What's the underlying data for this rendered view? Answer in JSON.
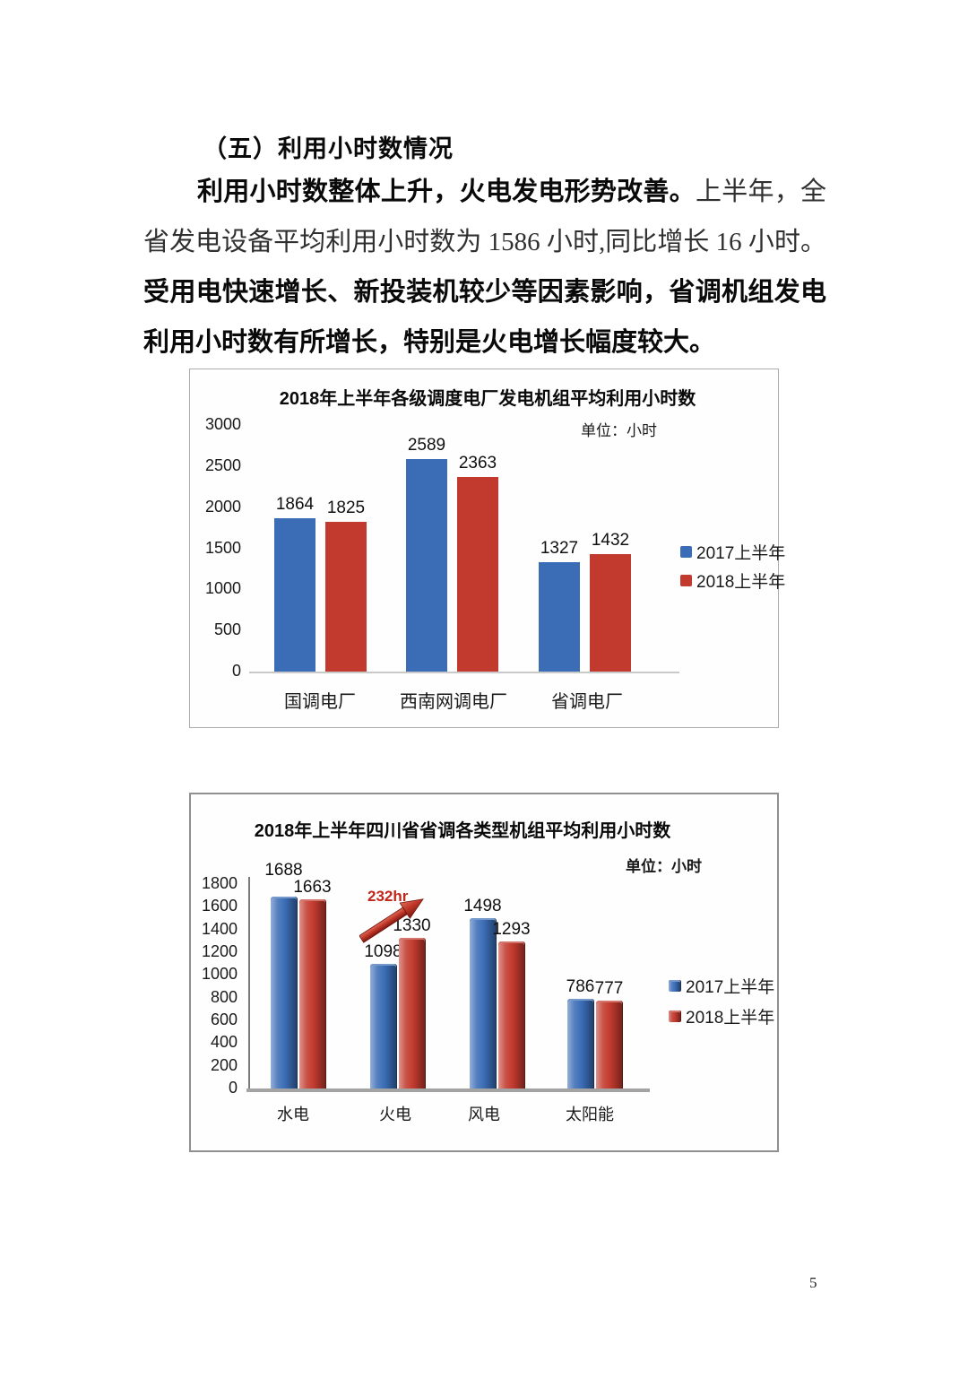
{
  "page_number": "5",
  "section": {
    "heading": "（五）利用小时数情况",
    "paragraph": {
      "bold_lead": "利用小时数整体上升，火电发电形势改善。",
      "regular": "上半年，全省发电设备平均利用小时数为 1586 小时,同比增长 16 小时。",
      "bold_tail": "受用电快速增长、新投装机较少等因素影响，省调机组发电利用小时数有所增长，特别是火电增长幅度较大。"
    }
  },
  "colors": {
    "series_2017_blue": "#3b6db6",
    "series_2018_red": "#c23a2e",
    "annotation_red": "#c2251a",
    "axis_gray": "#a3a3a3"
  },
  "chart_data": [
    {
      "type": "bar",
      "title": "2018年上半年各级调度电厂发电机组平均利用小时数",
      "unit_label": "单位：小时",
      "categories": [
        "国调电厂",
        "西南网调电厂",
        "省调电厂"
      ],
      "series": [
        {
          "name": "2017上半年",
          "color": "#3b6db6",
          "values": [
            1864,
            2589,
            1327
          ]
        },
        {
          "name": "2018上半年",
          "color": "#c23a2e",
          "values": [
            1825,
            2363,
            1432
          ]
        }
      ],
      "ylim": [
        0,
        3000
      ],
      "yticks": [
        0,
        500,
        1000,
        1500,
        2000,
        2500,
        3000
      ],
      "legend_position": "right",
      "grid": false
    },
    {
      "type": "bar",
      "title": "2018年上半年四川省省调各类型机组平均利用小时数",
      "unit_label": "单位：小时",
      "categories": [
        "水电",
        "火电",
        "风电",
        "太阳能"
      ],
      "series": [
        {
          "name": "2017上半年",
          "color": "#3b6db6",
          "values": [
            1688,
            1098,
            1498,
            786
          ]
        },
        {
          "name": "2018上半年",
          "color": "#c23a2e",
          "values": [
            1663,
            1330,
            1293,
            777
          ]
        }
      ],
      "ylim": [
        0,
        1800
      ],
      "yticks": [
        0,
        200,
        400,
        600,
        800,
        1000,
        1200,
        1400,
        1600,
        1800
      ],
      "legend_position": "right",
      "grid": false,
      "annotation": {
        "text": "232hr",
        "color": "#c2251a"
      }
    }
  ]
}
